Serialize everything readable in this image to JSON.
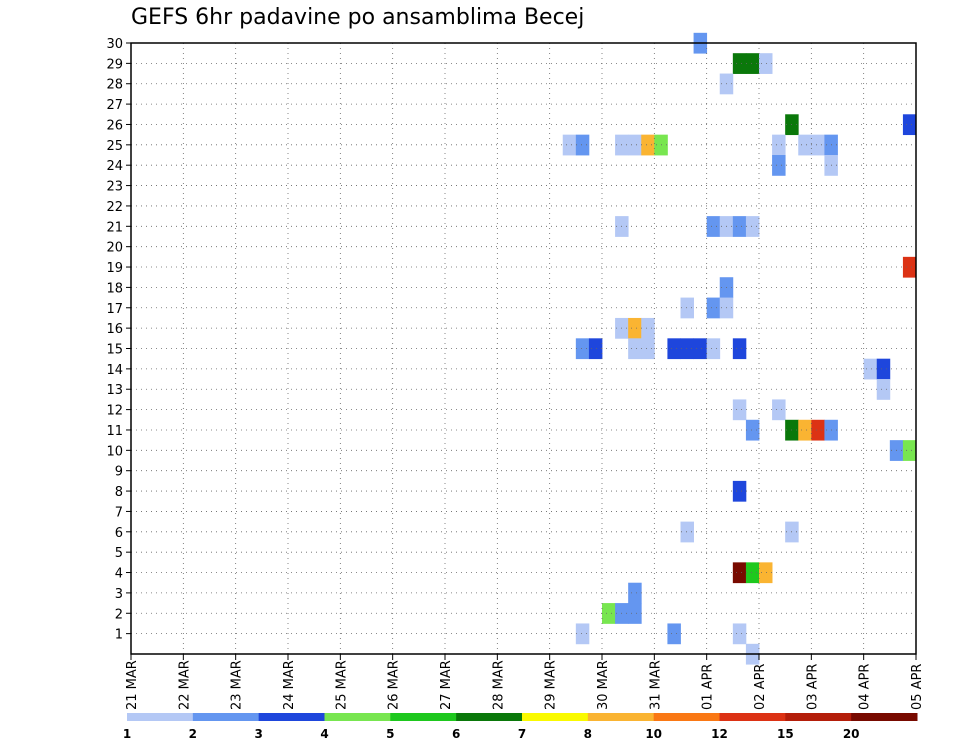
{
  "chart_data": {
    "type": "heatmap",
    "title": "GEFS 6hr padavine po ansamblima Becej",
    "xlabel": "",
    "ylabel": "",
    "x_tick_labels": [
      "21 MAR",
      "22 MAR",
      "23 MAR",
      "24 MAR",
      "25 MAR",
      "26 MAR",
      "27 MAR",
      "28 MAR",
      "29 MAR",
      "30 MAR",
      "31 MAR",
      "01 APR",
      "02 APR",
      "03 APR",
      "04 APR",
      "05 APR"
    ],
    "y_tick_labels": [
      "1",
      "2",
      "3",
      "4",
      "5",
      "6",
      "7",
      "8",
      "9",
      "10",
      "11",
      "12",
      "13",
      "14",
      "15",
      "16",
      "17",
      "18",
      "19",
      "20",
      "21",
      "22",
      "23",
      "24",
      "25",
      "26",
      "27",
      "28",
      "29",
      "30"
    ],
    "ylim": [
      0,
      30
    ],
    "xlim_steps": [
      0,
      60
    ],
    "steps_per_day": 4,
    "grid": true,
    "colorbar": {
      "labels": [
        "1",
        "2",
        "3",
        "4",
        "5",
        "6",
        "7",
        "8",
        "10",
        "12",
        "15",
        "20"
      ],
      "colors": [
        "#b4c8f5",
        "#6496f0",
        "#1e46dc",
        "#78e650",
        "#1ec81e",
        "#0a780a",
        "#fafa00",
        "#fab432",
        "#fa7814",
        "#dc3214",
        "#b41e0a",
        "#780a00"
      ]
    },
    "cells": [
      {
        "step": 43,
        "member": 30,
        "c": 1
      },
      {
        "step": 46,
        "member": 29,
        "c": 5
      },
      {
        "step": 47,
        "member": 29,
        "c": 5
      },
      {
        "step": 48,
        "member": 29,
        "c": 0
      },
      {
        "step": 45,
        "member": 28,
        "c": 0
      },
      {
        "step": 50,
        "member": 26,
        "c": 5
      },
      {
        "step": 59,
        "member": 26,
        "c": 2
      },
      {
        "step": 33,
        "member": 25,
        "c": 0
      },
      {
        "step": 34,
        "member": 25,
        "c": 1
      },
      {
        "step": 37,
        "member": 25,
        "c": 0
      },
      {
        "step": 38,
        "member": 25,
        "c": 0
      },
      {
        "step": 39,
        "member": 25,
        "c": 7
      },
      {
        "step": 40,
        "member": 25,
        "c": 3
      },
      {
        "step": 49,
        "member": 25,
        "c": 0
      },
      {
        "step": 51,
        "member": 25,
        "c": 0
      },
      {
        "step": 52,
        "member": 25,
        "c": 0
      },
      {
        "step": 53,
        "member": 25,
        "c": 1
      },
      {
        "step": 49,
        "member": 24,
        "c": 1
      },
      {
        "step": 53,
        "member": 24,
        "c": 0
      },
      {
        "step": 37,
        "member": 21,
        "c": 0
      },
      {
        "step": 44,
        "member": 21,
        "c": 1
      },
      {
        "step": 45,
        "member": 21,
        "c": 0
      },
      {
        "step": 46,
        "member": 21,
        "c": 1
      },
      {
        "step": 47,
        "member": 21,
        "c": 0
      },
      {
        "step": 59,
        "member": 19,
        "c": 9
      },
      {
        "step": 45,
        "member": 18,
        "c": 1
      },
      {
        "step": 42,
        "member": 17,
        "c": 0
      },
      {
        "step": 44,
        "member": 17,
        "c": 1
      },
      {
        "step": 45,
        "member": 17,
        "c": 0
      },
      {
        "step": 37,
        "member": 16,
        "c": 0
      },
      {
        "step": 38,
        "member": 16,
        "c": 7
      },
      {
        "step": 39,
        "member": 16,
        "c": 0
      },
      {
        "step": 34,
        "member": 15,
        "c": 1
      },
      {
        "step": 35,
        "member": 15,
        "c": 2
      },
      {
        "step": 38,
        "member": 15,
        "c": 0
      },
      {
        "step": 39,
        "member": 15,
        "c": 0
      },
      {
        "step": 41,
        "member": 15,
        "c": 2
      },
      {
        "step": 42,
        "member": 15,
        "c": 2
      },
      {
        "step": 43,
        "member": 15,
        "c": 2
      },
      {
        "step": 44,
        "member": 15,
        "c": 0
      },
      {
        "step": 46,
        "member": 15,
        "c": 2
      },
      {
        "step": 56,
        "member": 14,
        "c": 0
      },
      {
        "step": 57,
        "member": 14,
        "c": 2
      },
      {
        "step": 57,
        "member": 13,
        "c": 0
      },
      {
        "step": 46,
        "member": 12,
        "c": 0
      },
      {
        "step": 49,
        "member": 12,
        "c": 0
      },
      {
        "step": 47,
        "member": 11,
        "c": 1
      },
      {
        "step": 50,
        "member": 11,
        "c": 5
      },
      {
        "step": 51,
        "member": 11,
        "c": 7
      },
      {
        "step": 52,
        "member": 11,
        "c": 9
      },
      {
        "step": 53,
        "member": 11,
        "c": 1
      },
      {
        "step": 58,
        "member": 10,
        "c": 1
      },
      {
        "step": 59,
        "member": 10,
        "c": 3
      },
      {
        "step": 46,
        "member": 8,
        "c": 2
      },
      {
        "step": 42,
        "member": 6,
        "c": 0
      },
      {
        "step": 50,
        "member": 6,
        "c": 0
      },
      {
        "step": 46,
        "member": 4,
        "c": 11
      },
      {
        "step": 47,
        "member": 4,
        "c": 4
      },
      {
        "step": 48,
        "member": 4,
        "c": 7
      },
      {
        "step": 38,
        "member": 3,
        "c": 1
      },
      {
        "step": 36,
        "member": 2,
        "c": 3
      },
      {
        "step": 37,
        "member": 2,
        "c": 1
      },
      {
        "step": 38,
        "member": 2,
        "c": 1
      },
      {
        "step": 34,
        "member": 1,
        "c": 0
      },
      {
        "step": 41,
        "member": 1,
        "c": 1
      },
      {
        "step": 46,
        "member": 1,
        "c": 0
      },
      {
        "step": 47,
        "member": 0,
        "c": 0
      }
    ]
  }
}
